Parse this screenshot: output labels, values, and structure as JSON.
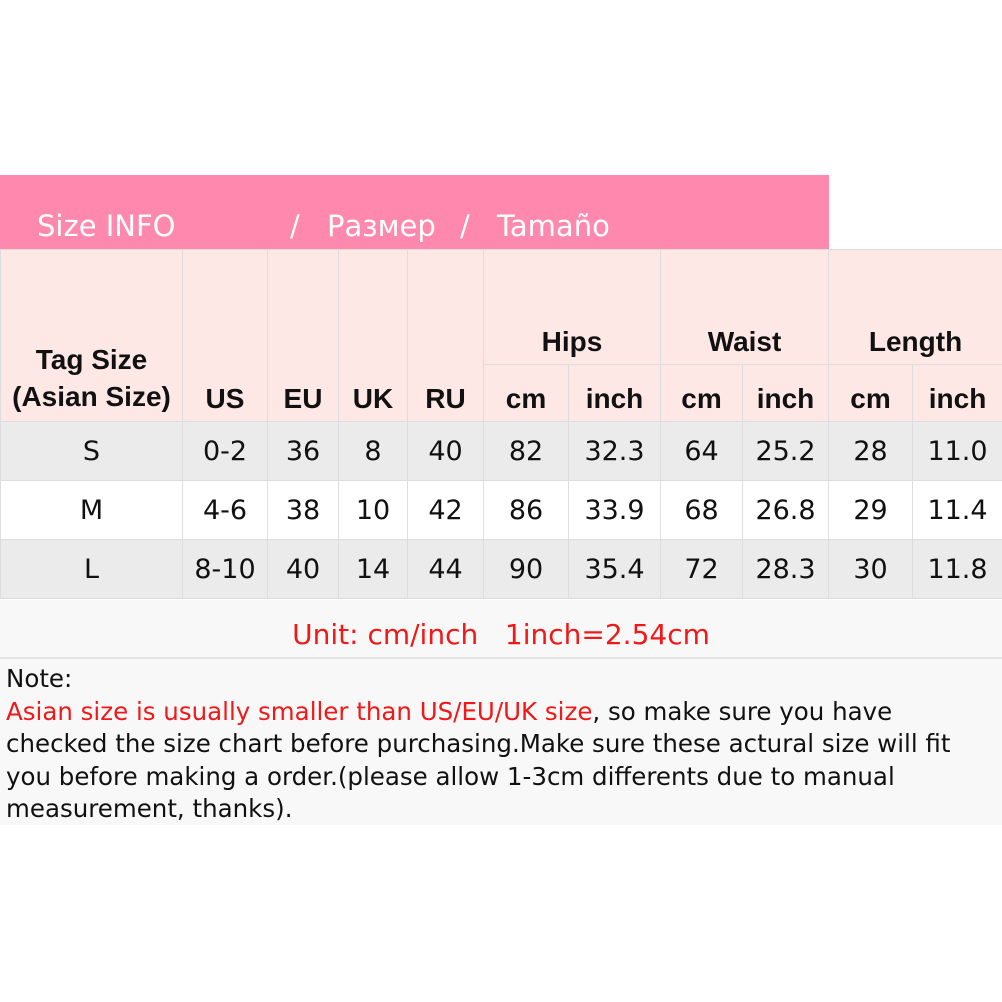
{
  "banner": {
    "en": "Size INFO",
    "sep1": "/",
    "ru": "Размер",
    "sep2": "/",
    "es": "Tamaño",
    "color": "#fe88ae"
  },
  "header": {
    "tag": "Tag Size (Asian Size)",
    "us": "US",
    "eu": "EU",
    "uk": "UK",
    "ru": "RU",
    "hips": "Hips",
    "waist": "Waist",
    "length": "Length",
    "cm": "cm",
    "inch": "inch"
  },
  "rows": [
    [
      "S",
      "0-2",
      "36",
      "8",
      "40",
      "82",
      "32.3",
      "64",
      "25.2",
      "28",
      "11.0"
    ],
    [
      "M",
      "4-6",
      "38",
      "10",
      "42",
      "86",
      "33.9",
      "68",
      "26.8",
      "29",
      "11.4"
    ],
    [
      "L",
      "8-10",
      "40",
      "14",
      "44",
      "90",
      "35.4",
      "72",
      "28.3",
      "30",
      "11.8"
    ]
  ],
  "unit": "Unit: cm/inch   1inch=2.54cm",
  "note": {
    "label": "Note:",
    "highlight": "Asian size is usually smaller than US/EU/UK size",
    "rest": ", so make sure you have checked the size chart before purchasing.Make sure these actural size will fit you before making a order.(please allow 1-3cm differents due to manual measurement, thanks).",
    "highlight_color": "#f01818"
  }
}
